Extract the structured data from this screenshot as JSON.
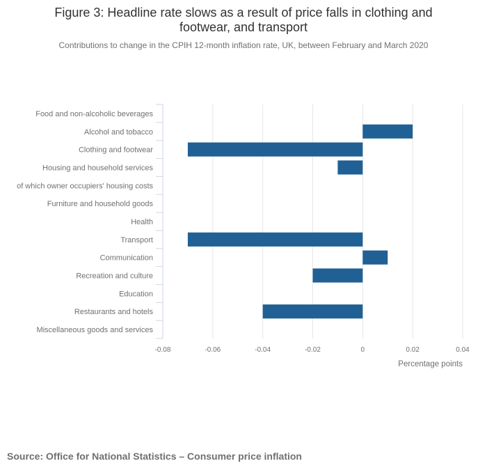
{
  "header": {
    "title": "Figure 3: Headline rate slows as a result of price falls in clothing and footwear, and transport",
    "subtitle": "Contributions to change in the CPIH 12-month inflation rate, UK, between February and March 2020"
  },
  "footer": {
    "source": "Source: Office for National Statistics – Consumer price inflation"
  },
  "colors": {
    "bar": "#206095",
    "grid": "#e6e6e6",
    "axis": "#ccd6eb"
  },
  "chart_data": {
    "type": "bar",
    "orientation": "horizontal",
    "categories": [
      "Food and non-alcoholic beverages",
      "Alcohol and tobacco",
      "Clothing and footwear",
      "Housing and household services",
      "of which owner occupiers' housing costs",
      "Furniture and household goods",
      "Health",
      "Transport",
      "Communication",
      "Recreation and culture",
      "Education",
      "Restaurants and hotels",
      "Miscellaneous goods and services"
    ],
    "values": [
      0,
      0.02,
      -0.07,
      -0.01,
      0,
      0,
      0,
      -0.07,
      0.01,
      -0.02,
      0,
      -0.04,
      0
    ],
    "xlabel": "Percentage points",
    "xlim": [
      -0.08,
      0.04
    ],
    "xticks": [
      -0.08,
      -0.06,
      -0.04,
      -0.02,
      0,
      0.02,
      0.04
    ],
    "xtick_labels": [
      "-0.08",
      "-0.06",
      "-0.04",
      "-0.02",
      "0",
      "0.02",
      "0.04"
    ],
    "grid": true,
    "legend": "none"
  }
}
